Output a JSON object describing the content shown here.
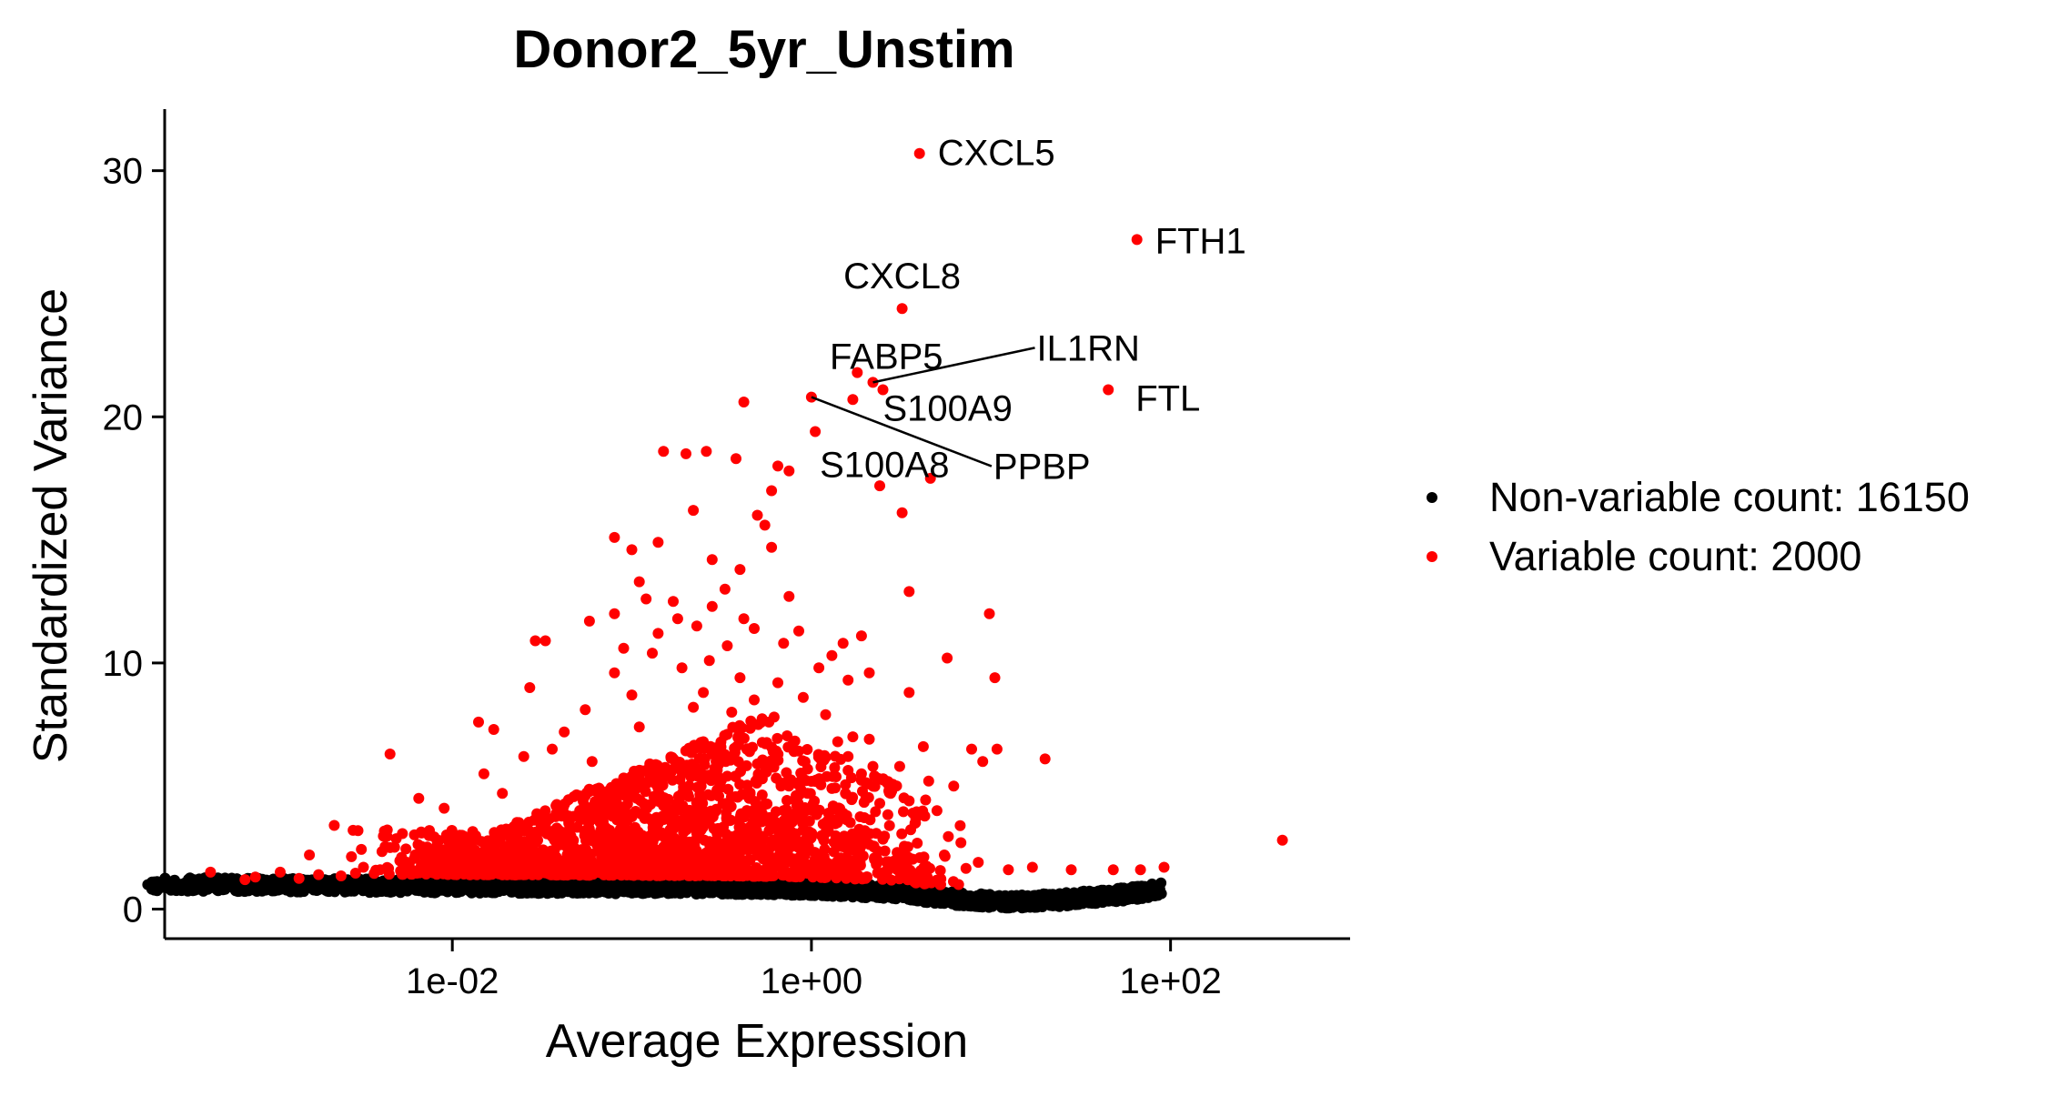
{
  "chart_data": {
    "type": "scatter",
    "title": "Donor2_5yr_Unstim",
    "xlabel": "Average Expression",
    "ylabel": "Standardized Variance",
    "x_scale": "log10",
    "xlim": [
      0.00025,
      1000
    ],
    "ylim": [
      -1.2,
      32.5
    ],
    "x_ticks": [
      {
        "value": 0.01,
        "label": "1e-02"
      },
      {
        "value": 1,
        "label": "1e+00"
      },
      {
        "value": 100,
        "label": "1e+02"
      }
    ],
    "y_ticks": [
      {
        "value": 0,
        "label": "0"
      },
      {
        "value": 10,
        "label": "10"
      },
      {
        "value": 20,
        "label": "20"
      },
      {
        "value": 30,
        "label": "30"
      }
    ],
    "grid": false,
    "legend_position": "right",
    "series": [
      {
        "name": "Non-variable count: 16150",
        "color": "#000000",
        "count": 16150
      },
      {
        "name": "Variable count: 2000",
        "color": "#ff0000",
        "count": 2000
      }
    ],
    "labeled_genes": [
      {
        "gene": "CXCL5",
        "x": 4.0,
        "y": 30.7
      },
      {
        "gene": "FTH1",
        "x": 65,
        "y": 27.2
      },
      {
        "gene": "CXCL8",
        "x": 3.2,
        "y": 24.4
      },
      {
        "gene": "FABP5",
        "x": 1.8,
        "y": 21.8
      },
      {
        "gene": "IL1RN",
        "x": 2.2,
        "y": 21.4
      },
      {
        "gene": "S100A9",
        "x": 2.5,
        "y": 21.1
      },
      {
        "gene": "FTL",
        "x": 45,
        "y": 21.1
      },
      {
        "gene": "PPBP",
        "x": 1.0,
        "y": 20.8
      },
      {
        "gene": "S100A8",
        "x": 1.05,
        "y": 19.4
      }
    ],
    "variable_points": [
      [
        4.0,
        30.7
      ],
      [
        65,
        27.2
      ],
      [
        3.2,
        24.4
      ],
      [
        1.8,
        21.8
      ],
      [
        2.2,
        21.4
      ],
      [
        2.5,
        21.1
      ],
      [
        45,
        21.1
      ],
      [
        1.0,
        20.8
      ],
      [
        1.05,
        19.4
      ],
      [
        0.42,
        20.6
      ],
      [
        1.7,
        20.7
      ],
      [
        0.15,
        18.6
      ],
      [
        0.2,
        18.5
      ],
      [
        0.26,
        18.6
      ],
      [
        0.38,
        18.3
      ],
      [
        0.65,
        18.0
      ],
      [
        0.75,
        17.8
      ],
      [
        2.4,
        17.2
      ],
      [
        4.6,
        17.5
      ],
      [
        0.6,
        17.0
      ],
      [
        0.5,
        16.0
      ],
      [
        0.22,
        16.2
      ],
      [
        3.2,
        16.1
      ],
      [
        0.55,
        15.6
      ],
      [
        0.08,
        15.1
      ],
      [
        0.14,
        14.9
      ],
      [
        0.1,
        14.6
      ],
      [
        0.28,
        14.2
      ],
      [
        0.6,
        14.7
      ],
      [
        0.4,
        13.8
      ],
      [
        0.11,
        13.3
      ],
      [
        0.33,
        13.0
      ],
      [
        0.75,
        12.7
      ],
      [
        0.12,
        12.6
      ],
      [
        0.17,
        12.5
      ],
      [
        3.5,
        12.9
      ],
      [
        0.08,
        12.0
      ],
      [
        0.28,
        12.3
      ],
      [
        0.42,
        11.8
      ],
      [
        9.8,
        12.0
      ],
      [
        0.058,
        11.7
      ],
      [
        0.18,
        11.8
      ],
      [
        0.23,
        11.5
      ],
      [
        0.14,
        11.2
      ],
      [
        0.48,
        11.4
      ],
      [
        0.85,
        11.3
      ],
      [
        0.029,
        10.9
      ],
      [
        0.033,
        10.9
      ],
      [
        0.09,
        10.6
      ],
      [
        0.34,
        10.7
      ],
      [
        0.7,
        10.8
      ],
      [
        1.5,
        10.8
      ],
      [
        1.9,
        11.1
      ],
      [
        0.13,
        10.4
      ],
      [
        0.27,
        10.1
      ],
      [
        1.3,
        10.3
      ],
      [
        5.7,
        10.2
      ],
      [
        0.19,
        9.8
      ],
      [
        1.1,
        9.8
      ],
      [
        0.08,
        9.6
      ],
      [
        0.4,
        9.4
      ],
      [
        0.65,
        9.2
      ],
      [
        1.6,
        9.3
      ],
      [
        2.1,
        9.6
      ],
      [
        10.5,
        9.4
      ],
      [
        0.027,
        9.0
      ],
      [
        0.1,
        8.7
      ],
      [
        0.25,
        8.8
      ],
      [
        0.48,
        8.5
      ],
      [
        0.9,
        8.6
      ],
      [
        3.5,
        8.8
      ],
      [
        0.22,
        8.2
      ],
      [
        0.055,
        8.1
      ],
      [
        0.36,
        8.0
      ],
      [
        0.62,
        7.8
      ],
      [
        1.2,
        7.9
      ],
      [
        0.58,
        7.6
      ],
      [
        0.014,
        7.6
      ],
      [
        0.11,
        7.4
      ],
      [
        0.017,
        7.3
      ],
      [
        0.042,
        7.2
      ],
      [
        0.34,
        7.1
      ],
      [
        1.7,
        7.0
      ],
      [
        1.4,
        6.8
      ],
      [
        2.1,
        6.9
      ],
      [
        0.25,
        6.8
      ],
      [
        4.2,
        6.6
      ],
      [
        0.036,
        6.5
      ],
      [
        0.28,
        6.3
      ],
      [
        0.8,
        6.4
      ],
      [
        1.6,
        6.2
      ],
      [
        7.8,
        6.5
      ],
      [
        10.8,
        6.5
      ],
      [
        0.0045,
        6.3
      ],
      [
        0.025,
        6.2
      ],
      [
        0.06,
        6.0
      ],
      [
        0.5,
        5.9
      ],
      [
        2.2,
        5.8
      ],
      [
        3.1,
        5.8
      ],
      [
        9.0,
        6.0
      ],
      [
        20,
        6.1
      ],
      [
        0.12,
        5.6
      ],
      [
        0.015,
        5.5
      ],
      [
        0.34,
        5.4
      ],
      [
        0.9,
        5.3
      ],
      [
        1.9,
        5.5
      ],
      [
        4.5,
        5.2
      ],
      [
        0.082,
        5.1
      ],
      [
        0.24,
        5.0
      ],
      [
        1.3,
        4.9
      ],
      [
        2.8,
        4.8
      ],
      [
        6.2,
        5.0
      ],
      [
        0.019,
        4.7
      ],
      [
        0.055,
        4.6
      ],
      [
        0.45,
        4.5
      ],
      [
        0.0065,
        4.5
      ],
      [
        2.4,
        4.3
      ],
      [
        3.5,
        4.4
      ],
      [
        0.15,
        4.2
      ],
      [
        0.009,
        4.1
      ],
      [
        0.7,
        4.0
      ],
      [
        1.5,
        3.9
      ],
      [
        5.0,
        4.0
      ],
      [
        0.042,
        3.8
      ],
      [
        0.27,
        3.6
      ],
      [
        1.2,
        3.5
      ],
      [
        3.8,
        3.5
      ],
      [
        0.0022,
        3.4
      ],
      [
        0.0028,
        3.2
      ],
      [
        0.011,
        3.0
      ],
      [
        0.075,
        3.1
      ],
      [
        0.5,
        3.0
      ],
      [
        2.0,
        2.9
      ],
      [
        6.8,
        2.7
      ],
      [
        0.024,
        2.7
      ],
      [
        0.0045,
        2.5
      ],
      [
        0.22,
        2.5
      ],
      [
        1.6,
        2.4
      ],
      [
        3.0,
        2.3
      ],
      [
        5.5,
        2.2
      ],
      [
        0.0016,
        2.2
      ],
      [
        0.0095,
        2.0
      ],
      [
        0.13,
        1.9
      ],
      [
        0.9,
        1.8
      ],
      [
        4.3,
        1.7
      ],
      [
        8.5,
        1.9
      ],
      [
        0.0032,
        1.7
      ],
      [
        0.039,
        1.6
      ],
      [
        0.45,
        1.5
      ],
      [
        2.5,
        1.4
      ],
      [
        0.00045,
        1.5
      ],
      [
        0.0011,
        1.5
      ],
      [
        0.0018,
        1.4
      ],
      [
        0.0008,
        1.3
      ],
      [
        12.5,
        1.6
      ],
      [
        17,
        1.7
      ],
      [
        28,
        1.6
      ],
      [
        48,
        1.6
      ],
      [
        68,
        1.6
      ],
      [
        92,
        1.7
      ],
      [
        420,
        2.8
      ],
      [
        0.0007,
        1.2
      ],
      [
        0.0014,
        1.25
      ],
      [
        0.0024,
        1.35
      ]
    ],
    "nonvariable_envelope": [
      [
        0.0001,
        1.15
      ],
      [
        0.01,
        1.05
      ],
      [
        0.3,
        1.0
      ],
      [
        1,
        0.95
      ],
      [
        3,
        0.8
      ],
      [
        6,
        0.55
      ],
      [
        12,
        0.4
      ],
      [
        25,
        0.5
      ],
      [
        60,
        0.75
      ],
      [
        100,
        1.0
      ]
    ]
  },
  "legend": {
    "nonvariable_label": "Non-variable count: 16150",
    "variable_label": "Variable count: 2000",
    "nonvariable_color": "#000000",
    "variable_color": "#ff0000"
  }
}
